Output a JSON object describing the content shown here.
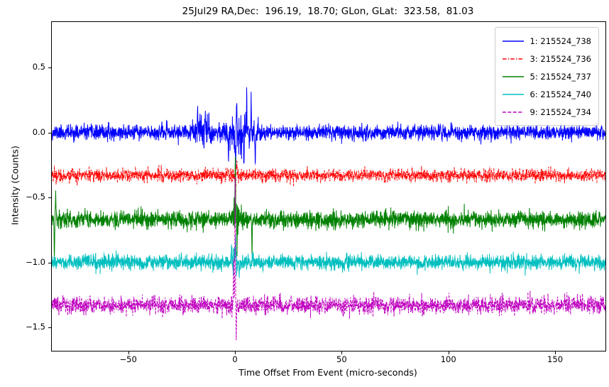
{
  "chart_data": {
    "type": "line",
    "title": "25Jul29 RA,Dec:  196.19,  18.70; GLon, GLat:  323.58,  81.03",
    "xlabel": "Time Offset From Event (micro-seconds)",
    "ylabel": "Intensity (Counts)",
    "xlim": [
      -85.8,
      173.6
    ],
    "ylim": [
      -1.68,
      0.85
    ],
    "grid": false,
    "legend_position": "upper right",
    "xticks": {
      "values": [
        -50,
        0,
        50,
        100,
        150
      ],
      "labels": [
        "−50",
        "0",
        "50",
        "100",
        "150"
      ]
    },
    "yticks": {
      "values": [
        0.5,
        0.0,
        -0.5,
        -1.0,
        -1.5
      ],
      "labels": [
        "0.5",
        "0.0",
        "−0.5",
        "−1.0",
        "−1.5"
      ]
    },
    "points_per_series": 2600,
    "description": "Five noisy detector intensity traces vertically offset, with a burst of larger-amplitude spikes near time offset 0 micro-seconds; a large dashed magenta downward/upward spike at 0, green and cyan spikes at 0, and a green glitch at the far left edge near -84.",
    "series": [
      {
        "name": "1: 215524_738",
        "color": "#0000ff",
        "style": "solid",
        "dash": [],
        "baseline": 0.0,
        "noise_sigma": 0.028,
        "seed": 11,
        "bursts": [
          {
            "center": 3,
            "width": 6,
            "mult": 3.0
          },
          {
            "center": -15,
            "width": 3.5,
            "mult": 2.4
          }
        ],
        "spikes": [
          {
            "x": 5.5,
            "dy": 0.3
          },
          {
            "x": 7.6,
            "dy": 0.27
          },
          {
            "x": 0.8,
            "dy": 0.25
          },
          {
            "x": 4.2,
            "dy": -0.24
          },
          {
            "x": 9.5,
            "dy": -0.19
          },
          {
            "x": 0.3,
            "dy": -0.26
          },
          {
            "x": -14.0,
            "dy": 0.22
          },
          {
            "x": -17.5,
            "dy": 0.18
          },
          {
            "x": -12.2,
            "dy": 0.16
          },
          {
            "x": -3.0,
            "dy": -0.17
          }
        ]
      },
      {
        "name": "3: 215524_736",
        "color": "#ff0000",
        "style": "dash-dot",
        "dash": [
          4,
          1.5,
          1,
          1.5
        ],
        "baseline": -0.33,
        "noise_sigma": 0.024,
        "seed": 22,
        "bursts": [
          {
            "center": 0.5,
            "width": 1.2,
            "mult": 2.0
          }
        ],
        "spikes": [
          {
            "x": 0.3,
            "dy": -0.2
          },
          {
            "x": 0.9,
            "dy": 0.07
          }
        ]
      },
      {
        "name": "5: 215524_737",
        "color": "#008000",
        "style": "solid",
        "dash": [],
        "baseline": -0.67,
        "noise_sigma": 0.032,
        "seed": 33,
        "bursts": [
          {
            "center": 0.5,
            "width": 1.5,
            "mult": 2.8
          }
        ],
        "spikes": [
          {
            "x": -84.6,
            "dy": -0.27
          },
          {
            "x": -84.0,
            "dy": 0.2
          },
          {
            "x": 0.2,
            "dy": 0.45
          },
          {
            "x": 1.0,
            "dy": -0.16
          },
          {
            "x": 8.0,
            "dy": -0.26
          }
        ]
      },
      {
        "name": "6: 215524_740",
        "color": "#00bfbf",
        "style": "solid",
        "dash": [],
        "baseline": -1.0,
        "noise_sigma": 0.028,
        "seed": 44,
        "bursts": [
          {
            "center": 0.0,
            "width": 1.5,
            "mult": 2.2
          }
        ],
        "spikes": [
          {
            "x": 0.3,
            "dy": 0.27
          },
          {
            "x": -1.5,
            "dy": 0.15
          },
          {
            "x": 2.0,
            "dy": -0.12
          }
        ]
      },
      {
        "name": "9: 215524_734",
        "color": "#bf00bf",
        "style": "dashed",
        "dash": [
          3.5,
          1.8
        ],
        "baseline": -1.33,
        "noise_sigma": 0.032,
        "seed": 55,
        "bursts": [
          {
            "center": 0.0,
            "width": 1.2,
            "mult": 1.8
          }
        ],
        "spikes": [
          {
            "x": 0.1,
            "dy": 0.95
          },
          {
            "x": 0.6,
            "dy": -0.23
          },
          {
            "x": -0.6,
            "dy": 0.3
          }
        ]
      }
    ]
  }
}
